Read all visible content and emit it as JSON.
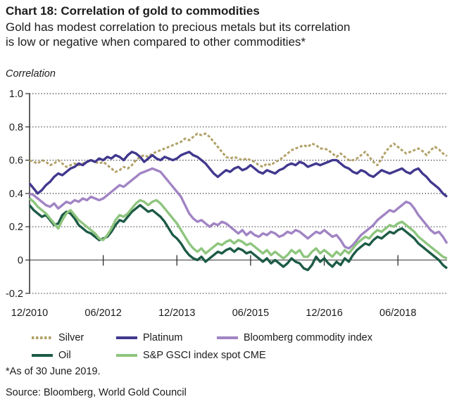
{
  "header": {
    "title": "Chart 18: Correlation of gold to commodities",
    "subtitle_line1": "Gold has modest correlation to precious metals but its correlation",
    "subtitle_line2": "is low or negative when compared to other commodities*",
    "axis_unit_label": "Correlation"
  },
  "footnotes": {
    "asterisk_note": "*As of 30 June 2019.",
    "source": "Source: Bloomberg, World Gold Council"
  },
  "chart_data": {
    "type": "line",
    "title": "Chart 18: Correlation of gold to commodities",
    "ylabel": "Correlation",
    "ylim": [
      -0.2,
      1.0
    ],
    "ytick_values": [
      1.0,
      0.8,
      0.6,
      0.4,
      0.2,
      0,
      -0.2
    ],
    "ytick_labels": [
      "1.0",
      "0.8",
      "0.6",
      "0.4",
      "0.2",
      "0",
      "-0.2"
    ],
    "xtick_labels": [
      "12/2010",
      "06/2012",
      "12/2013",
      "06/2015",
      "12/2016",
      "06/2018"
    ],
    "xtick_month_index": [
      0,
      18,
      36,
      54,
      72,
      90
    ],
    "x_range": [
      "12/2010",
      "06/2019"
    ],
    "frequency": "monthly",
    "grid": "dotted horizontal gridlines, solid zero line",
    "legend_position": "bottom",
    "zero_line_color": "#6f6f6f",
    "gridline_color": "#2e2e2e",
    "series": [
      {
        "name": "Silver",
        "color": "#b2a269",
        "dash": "dashed",
        "values": [
          0.6,
          0.59,
          0.58,
          0.6,
          0.59,
          0.57,
          0.58,
          0.6,
          0.58,
          0.56,
          0.57,
          0.58,
          0.57,
          0.58,
          0.59,
          0.6,
          0.59,
          0.58,
          0.59,
          0.57,
          0.55,
          0.53,
          0.54,
          0.56,
          0.55,
          0.57,
          0.6,
          0.62,
          0.63,
          0.62,
          0.64,
          0.65,
          0.66,
          0.67,
          0.68,
          0.69,
          0.7,
          0.71,
          0.73,
          0.72,
          0.74,
          0.76,
          0.75,
          0.76,
          0.74,
          0.71,
          0.68,
          0.65,
          0.62,
          0.61,
          0.62,
          0.61,
          0.6,
          0.61,
          0.6,
          0.59,
          0.57,
          0.56,
          0.58,
          0.57,
          0.59,
          0.6,
          0.62,
          0.64,
          0.66,
          0.67,
          0.68,
          0.69,
          0.68,
          0.7,
          0.69,
          0.67,
          0.67,
          0.66,
          0.64,
          0.62,
          0.64,
          0.62,
          0.6,
          0.6,
          0.61,
          0.63,
          0.65,
          0.62,
          0.59,
          0.57,
          0.61,
          0.65,
          0.68,
          0.7,
          0.68,
          0.66,
          0.64,
          0.65,
          0.66,
          0.67,
          0.655,
          0.63,
          0.66,
          0.68,
          0.665,
          0.64,
          0.625
        ]
      },
      {
        "name": "Platinum",
        "color": "#41388e",
        "dash": "solid",
        "values": [
          0.46,
          0.43,
          0.4,
          0.42,
          0.45,
          0.47,
          0.5,
          0.52,
          0.51,
          0.53,
          0.55,
          0.56,
          0.58,
          0.57,
          0.59,
          0.6,
          0.59,
          0.61,
          0.6,
          0.62,
          0.61,
          0.63,
          0.62,
          0.6,
          0.63,
          0.65,
          0.64,
          0.62,
          0.59,
          0.61,
          0.63,
          0.61,
          0.6,
          0.62,
          0.61,
          0.6,
          0.61,
          0.63,
          0.64,
          0.65,
          0.63,
          0.62,
          0.6,
          0.58,
          0.55,
          0.52,
          0.5,
          0.52,
          0.54,
          0.53,
          0.55,
          0.56,
          0.54,
          0.55,
          0.57,
          0.55,
          0.53,
          0.52,
          0.54,
          0.53,
          0.52,
          0.54,
          0.55,
          0.57,
          0.58,
          0.57,
          0.59,
          0.58,
          0.56,
          0.57,
          0.58,
          0.57,
          0.58,
          0.59,
          0.6,
          0.6,
          0.58,
          0.56,
          0.55,
          0.53,
          0.52,
          0.54,
          0.53,
          0.51,
          0.5,
          0.52,
          0.54,
          0.53,
          0.52,
          0.53,
          0.54,
          0.55,
          0.53,
          0.52,
          0.54,
          0.55,
          0.52,
          0.5,
          0.47,
          0.45,
          0.43,
          0.4,
          0.38
        ]
      },
      {
        "name": "Bloomberg commodity index",
        "color": "#a184c4",
        "dash": "solid",
        "values": [
          0.4,
          0.39,
          0.37,
          0.35,
          0.33,
          0.32,
          0.34,
          0.31,
          0.33,
          0.35,
          0.34,
          0.36,
          0.35,
          0.37,
          0.36,
          0.38,
          0.37,
          0.36,
          0.37,
          0.39,
          0.41,
          0.43,
          0.45,
          0.44,
          0.46,
          0.48,
          0.5,
          0.52,
          0.53,
          0.54,
          0.55,
          0.54,
          0.53,
          0.5,
          0.47,
          0.44,
          0.41,
          0.38,
          0.33,
          0.28,
          0.25,
          0.23,
          0.24,
          0.22,
          0.2,
          0.22,
          0.21,
          0.23,
          0.22,
          0.2,
          0.18,
          0.16,
          0.18,
          0.15,
          0.17,
          0.15,
          0.14,
          0.16,
          0.15,
          0.17,
          0.16,
          0.14,
          0.15,
          0.17,
          0.16,
          0.18,
          0.17,
          0.15,
          0.13,
          0.15,
          0.17,
          0.16,
          0.18,
          0.16,
          0.14,
          0.15,
          0.12,
          0.08,
          0.07,
          0.09,
          0.12,
          0.15,
          0.17,
          0.19,
          0.21,
          0.24,
          0.26,
          0.28,
          0.3,
          0.29,
          0.31,
          0.33,
          0.35,
          0.34,
          0.31,
          0.27,
          0.24,
          0.21,
          0.18,
          0.16,
          0.17,
          0.14,
          0.1
        ]
      },
      {
        "name": "Oil",
        "color": "#1d5b46",
        "dash": "solid",
        "values": [
          0.33,
          0.3,
          0.28,
          0.26,
          0.27,
          0.24,
          0.21,
          0.22,
          0.27,
          0.29,
          0.28,
          0.25,
          0.21,
          0.19,
          0.17,
          0.16,
          0.14,
          0.12,
          0.13,
          0.14,
          0.17,
          0.21,
          0.24,
          0.23,
          0.26,
          0.29,
          0.31,
          0.33,
          0.31,
          0.29,
          0.3,
          0.28,
          0.26,
          0.23,
          0.19,
          0.15,
          0.13,
          0.1,
          0.06,
          0.03,
          0.01,
          0.0,
          0.02,
          -0.01,
          0.01,
          0.03,
          0.05,
          0.04,
          0.06,
          0.07,
          0.05,
          0.07,
          0.06,
          0.04,
          0.05,
          0.03,
          0.01,
          -0.01,
          0.01,
          -0.02,
          0.0,
          -0.02,
          -0.04,
          -0.02,
          0.01,
          -0.01,
          -0.02,
          -0.05,
          -0.06,
          -0.03,
          0.02,
          -0.01,
          0.01,
          -0.02,
          -0.04,
          -0.01,
          -0.03,
          0.01,
          -0.01,
          0.03,
          0.06,
          0.08,
          0.1,
          0.09,
          0.12,
          0.14,
          0.13,
          0.15,
          0.17,
          0.16,
          0.18,
          0.19,
          0.17,
          0.15,
          0.13,
          0.1,
          0.08,
          0.06,
          0.04,
          0.02,
          0.0,
          -0.03,
          -0.05
        ]
      },
      {
        "name": "S&P GSCI index spot CME",
        "color": "#8ec57e",
        "dash": "solid",
        "values": [
          0.37,
          0.35,
          0.32,
          0.3,
          0.28,
          0.25,
          0.22,
          0.19,
          0.24,
          0.28,
          0.3,
          0.27,
          0.24,
          0.22,
          0.2,
          0.18,
          0.16,
          0.13,
          0.12,
          0.15,
          0.19,
          0.24,
          0.27,
          0.26,
          0.28,
          0.31,
          0.34,
          0.36,
          0.35,
          0.33,
          0.35,
          0.36,
          0.34,
          0.31,
          0.28,
          0.25,
          0.22,
          0.18,
          0.14,
          0.1,
          0.07,
          0.05,
          0.07,
          0.04,
          0.06,
          0.08,
          0.1,
          0.09,
          0.11,
          0.12,
          0.1,
          0.12,
          0.11,
          0.09,
          0.1,
          0.08,
          0.06,
          0.04,
          0.06,
          0.03,
          0.05,
          0.03,
          0.01,
          0.03,
          0.06,
          0.04,
          0.06,
          0.02,
          0.02,
          0.05,
          0.07,
          0.04,
          0.06,
          0.04,
          0.02,
          0.05,
          0.03,
          0.06,
          0.04,
          0.07,
          0.1,
          0.12,
          0.14,
          0.13,
          0.16,
          0.18,
          0.17,
          0.19,
          0.21,
          0.2,
          0.22,
          0.23,
          0.21,
          0.19,
          0.17,
          0.14,
          0.12,
          0.1,
          0.08,
          0.06,
          0.04,
          0.02,
          0.01
        ]
      }
    ]
  }
}
